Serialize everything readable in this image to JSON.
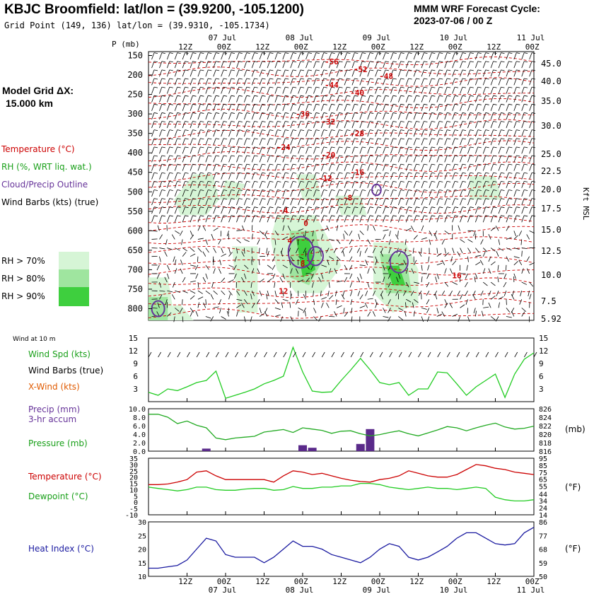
{
  "header": {
    "title": "KBJC Broomfield:  lat/lon = (39.9200, -105.1200)",
    "subtitle": "Grid Point (149, 136) lat/lon = (39.9310, -105.1734)",
    "cycle_line1": "MMM WRF Forecast Cycle:",
    "cycle_line2": "2023-07-06 / 00  Z",
    "grid_line1": "Model Grid ΔX:",
    "grid_line2": "15.000 km"
  },
  "legend": {
    "temperature": "Temperature (°C)",
    "rh": "RH (%, WRT liq. wat.)",
    "cloud": "Cloud/Precip Outline",
    "wind_barbs": "Wind Barbs (kts) (true)",
    "rh70": "RH > 70%",
    "rh80": "RH > 80%",
    "rh90": "RH > 90%",
    "rh_colors": [
      "#d6f5d6",
      "#9fe59f",
      "#3ecf3e"
    ]
  },
  "lower_legend": {
    "wind10m": "Wind at 10 m",
    "wind_spd": "Wind Spd (kts)",
    "wind_barbs": "Wind Barbs (true)",
    "xwind": "X-Wind (kts)",
    "precip": "Precip (mm)",
    "precip2": "3-hr accum",
    "pressure": "Pressure (mb)",
    "pressure_unit": "(mb)",
    "temperature": "Temperature (°C)",
    "dewpoint": "Dewpoint (°C)",
    "temp_unit": "(°F)",
    "heat_index": "Heat Index (°C)",
    "heat_unit": "(°F)"
  },
  "colors": {
    "temp": "#cc0000",
    "rh": "#2ecc2e",
    "cloud": "#663399",
    "wind": "#22cc22",
    "precip": "#5a2a8a",
    "pressure": "#22aa22",
    "dewpoint": "#22cc22",
    "heat": "#1a1aa0"
  },
  "chart_data": [
    {
      "type": "heatmap",
      "title": "Vertical time section",
      "top_time_labels": [
        "12Z",
        "00Z",
        "12Z",
        "00Z",
        "12Z",
        "00Z",
        "12Z",
        "00Z",
        "12Z",
        "00Z"
      ],
      "date_labels": [
        "07 Jul",
        "08 Jul",
        "09 Jul",
        "10 Jul",
        "11 Jul"
      ],
      "ylabel": "P (mb)",
      "pressure_levels": [
        150,
        200,
        250,
        300,
        350,
        400,
        450,
        500,
        550,
        600,
        650,
        700,
        750,
        800
      ],
      "ylim": [
        830,
        140
      ],
      "right_label": "Kft MSL",
      "height_ticks": [
        "45.0",
        "40.0",
        "35.0",
        "30.0",
        "25.0",
        "22.5",
        "20.0",
        "17.5",
        "15.0",
        "12.5",
        "10.0",
        "7.5",
        "5.92"
      ],
      "temperature_labels": [
        {
          "t": "-56",
          "time_h": 57,
          "p": 165
        },
        {
          "t": "-52",
          "time_h": 66,
          "p": 185
        },
        {
          "t": "-48",
          "time_h": 74,
          "p": 203
        },
        {
          "t": "-44",
          "time_h": 57,
          "p": 225
        },
        {
          "t": "-40",
          "time_h": 65,
          "p": 245
        },
        {
          "t": "-36",
          "time_h": 48,
          "p": 300
        },
        {
          "t": "-32",
          "time_h": 56,
          "p": 320
        },
        {
          "t": "-28",
          "time_h": 65,
          "p": 350
        },
        {
          "t": "-24",
          "time_h": 42,
          "p": 385
        },
        {
          "t": "-20",
          "time_h": 56,
          "p": 405
        },
        {
          "t": "-16",
          "time_h": 65,
          "p": 450
        },
        {
          "t": "-12",
          "time_h": 55,
          "p": 465
        },
        {
          "t": "-8",
          "time_h": 62,
          "p": 515
        },
        {
          "t": "-4",
          "time_h": 42,
          "p": 548
        },
        {
          "t": "0",
          "time_h": 49,
          "p": 580
        },
        {
          "t": "4",
          "time_h": 44,
          "p": 625
        },
        {
          "t": "8",
          "time_h": 48,
          "p": 685
        },
        {
          "t": "12",
          "time_h": 42,
          "p": 755
        },
        {
          "t": "16",
          "time_h": 96,
          "p": 715
        }
      ]
    },
    {
      "type": "line",
      "title": "Wind at 10 m",
      "x_hours": [
        0,
        3,
        6,
        9,
        12,
        15,
        18,
        21,
        24,
        27,
        30,
        33,
        36,
        39,
        42,
        45,
        48,
        51,
        54,
        57,
        60,
        63,
        66,
        69,
        72,
        75,
        78,
        81,
        84,
        87,
        90,
        93,
        96,
        99,
        102,
        105,
        108,
        111,
        114,
        117,
        120
      ],
      "ylim": [
        0,
        15
      ],
      "yticks": [
        3,
        6,
        9,
        12,
        15
      ],
      "series": [
        {
          "name": "Wind Spd (kts)",
          "values": [
            2.2,
            1.5,
            3,
            2.6,
            3.5,
            4.5,
            5,
            7.2,
            0.8,
            1.5,
            2.2,
            3,
            4.2,
            5,
            6,
            12.8,
            7,
            2.5,
            2.2,
            2.3,
            5,
            7.5,
            10.2,
            7.5,
            4.5,
            4,
            4.5,
            1.5,
            3,
            3,
            7,
            6.8,
            4.2,
            1.5,
            3.5,
            5,
            6.5,
            1,
            6.5,
            10,
            11.5
          ]
        }
      ]
    },
    {
      "type": "bar",
      "title": "Precip (mm)",
      "x_hours": [
        0,
        3,
        6,
        9,
        12,
        15,
        18,
        21,
        24,
        27,
        30,
        33,
        36,
        39,
        42,
        45,
        48,
        51,
        54,
        57,
        60,
        63,
        66,
        69,
        72,
        75,
        78,
        81,
        84,
        87,
        90,
        93,
        96,
        99,
        102,
        105,
        108,
        111,
        114,
        117,
        120
      ],
      "ylim": [
        0,
        10
      ],
      "yticks": [
        "0.0",
        "2.0",
        "4.0",
        "6.0",
        "8.0",
        "10.0"
      ],
      "values": [
        0,
        0,
        0,
        0,
        0,
        0,
        0.6,
        0,
        0,
        0,
        0,
        0,
        0,
        0,
        0,
        0,
        1.4,
        0.8,
        0,
        0,
        0,
        0,
        1.7,
        5.2,
        0,
        0,
        0,
        0,
        0,
        0,
        0,
        0,
        0,
        0,
        0,
        0,
        0,
        0,
        0,
        0,
        0
      ],
      "pressure_ylim": [
        816,
        826
      ],
      "pressure_ticks": [
        "816",
        "818",
        "820",
        "822",
        "824",
        "826"
      ],
      "series": [
        {
          "name": "Pressure (mb)",
          "values": [
            824.7,
            824.7,
            824,
            822.5,
            823.1,
            822.1,
            821.5,
            819.1,
            818.7,
            819.1,
            819.3,
            819.5,
            820.5,
            820.8,
            821.1,
            820.4,
            821.5,
            821.2,
            820.9,
            820.2,
            820.7,
            820.8,
            820.1,
            819.6,
            819.9,
            820.4,
            820.8,
            820.1,
            819.6,
            820.3,
            821,
            821.8,
            821.5,
            820.8,
            821.5,
            822.1,
            822.6,
            821.7,
            821.2,
            821.4,
            821.9
          ]
        }
      ]
    },
    {
      "type": "line",
      "title": "Temperature / Dewpoint",
      "x_hours": [
        0,
        3,
        6,
        9,
        12,
        15,
        18,
        21,
        24,
        27,
        30,
        33,
        36,
        39,
        42,
        45,
        48,
        51,
        54,
        57,
        60,
        63,
        66,
        69,
        72,
        75,
        78,
        81,
        84,
        87,
        90,
        93,
        96,
        99,
        102,
        105,
        108,
        111,
        114,
        117,
        120
      ],
      "ylim": [
        -10,
        35
      ],
      "yticks_c": [
        "-10",
        "-5",
        "0",
        "5",
        "10",
        "15",
        "20",
        "25",
        "30",
        "35"
      ],
      "yticks_f": [
        "14",
        "24",
        "34",
        "44",
        "55",
        "65",
        "75",
        "85",
        "95"
      ],
      "series": [
        {
          "name": "Temperature (°C)",
          "values": [
            14,
            14,
            14.5,
            16,
            18,
            24,
            25,
            21,
            18,
            18,
            18,
            18,
            18,
            16,
            21,
            25,
            24,
            22,
            23,
            21,
            19,
            17.5,
            16.5,
            16,
            18,
            19,
            21,
            25,
            23,
            21,
            20,
            20,
            22,
            26,
            30,
            29,
            27,
            26,
            24,
            23,
            22
          ]
        },
        {
          "name": "Dewpoint (°C)",
          "values": [
            12,
            11,
            10,
            9,
            10,
            12,
            12,
            10,
            9.5,
            9.5,
            10.5,
            11,
            11,
            9.5,
            10,
            12.5,
            11,
            11,
            12,
            12,
            13,
            13,
            15,
            15,
            14,
            12,
            11,
            10,
            11,
            12,
            11,
            11,
            10,
            11,
            12,
            11,
            4,
            2,
            1,
            1,
            2
          ]
        }
      ]
    },
    {
      "type": "line",
      "title": "Heat Index",
      "x_hours": [
        0,
        3,
        6,
        9,
        12,
        15,
        18,
        21,
        24,
        27,
        30,
        33,
        36,
        39,
        42,
        45,
        48,
        51,
        54,
        57,
        60,
        63,
        66,
        69,
        72,
        75,
        78,
        81,
        84,
        87,
        90,
        93,
        96,
        99,
        102,
        105,
        108,
        111,
        114,
        117,
        120
      ],
      "ylim": [
        10,
        30
      ],
      "yticks_c": [
        "10",
        "15",
        "20",
        "25",
        "30"
      ],
      "yticks_f": [
        "50",
        "59",
        "68",
        "77",
        "86"
      ],
      "series": [
        {
          "name": "Heat Index (°C)",
          "values": [
            13,
            13,
            13.5,
            14,
            16,
            20,
            24,
            23,
            18,
            17,
            17,
            17,
            15,
            17,
            20,
            23,
            21,
            21,
            20,
            18,
            17,
            16,
            15,
            17,
            20,
            22,
            21,
            17,
            16,
            17,
            19,
            21,
            24,
            26,
            26,
            24,
            22,
            21.5,
            22,
            26,
            28
          ]
        }
      ]
    }
  ],
  "bottom_axis": {
    "time_labels": [
      "12Z",
      "00Z",
      "12Z",
      "00Z",
      "12Z",
      "00Z",
      "12Z",
      "00Z",
      "12Z",
      "00Z"
    ],
    "date_labels": [
      "07 Jul",
      "08 Jul",
      "09 Jul",
      "10 Jul",
      "11 Jul"
    ]
  }
}
